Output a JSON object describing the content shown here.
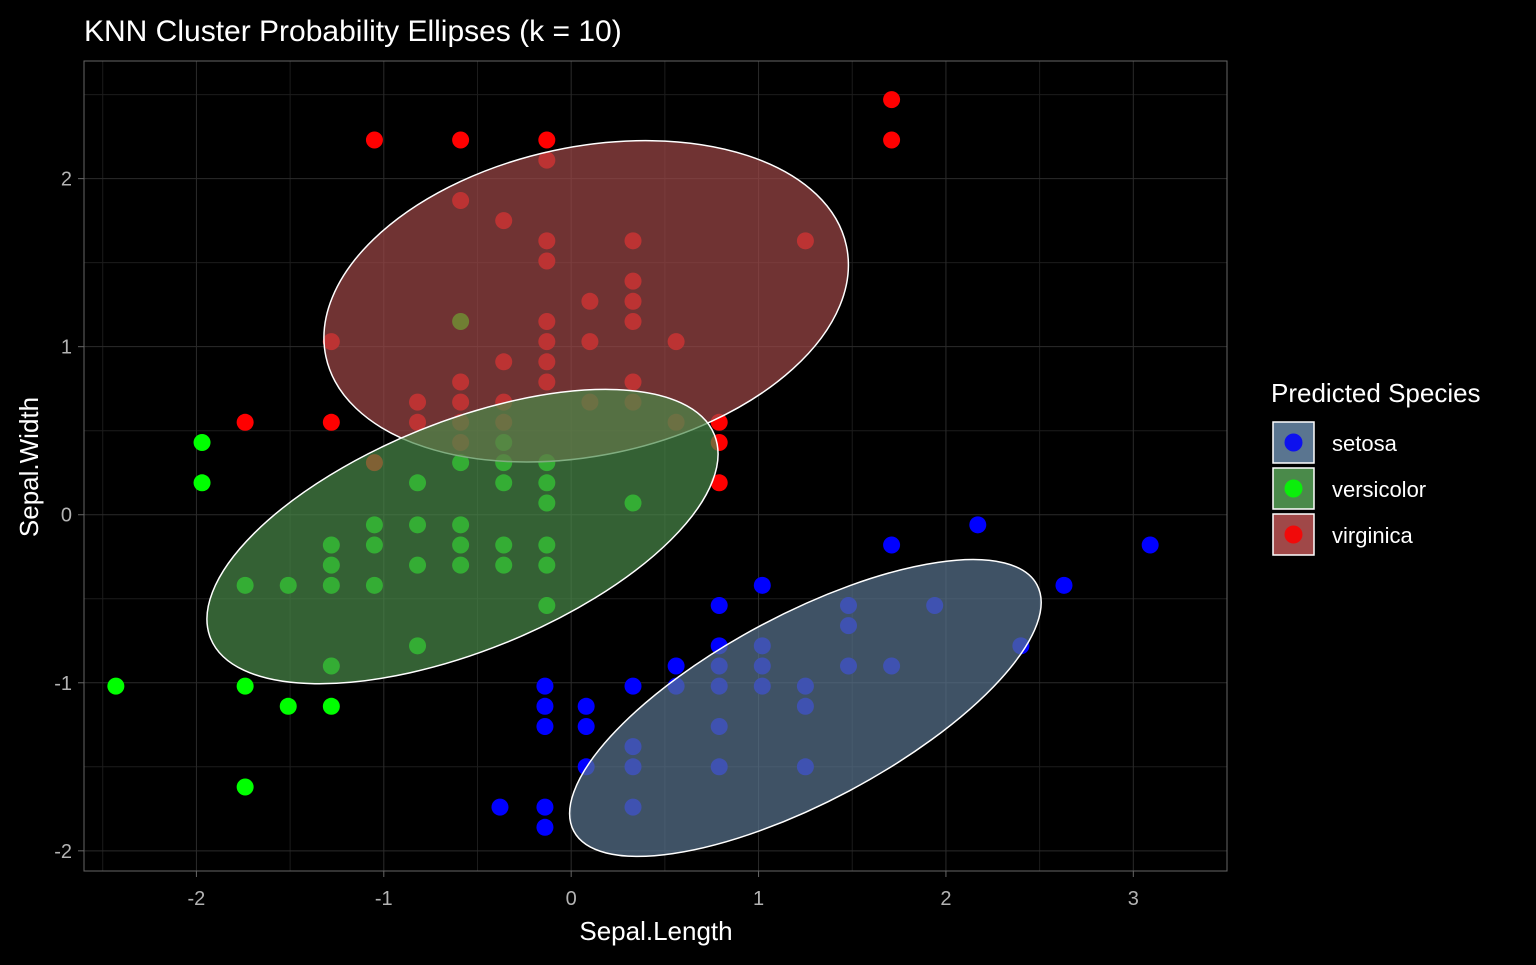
{
  "chart_data": {
    "type": "scatter",
    "title": "KNN Cluster Probability Ellipses (k = 10)",
    "xlabel": "Sepal.Length",
    "ylabel": "Sepal.Width",
    "xlim": [
      -2.6,
      3.5
    ],
    "ylim": [
      -2.12,
      2.7
    ],
    "xticks": [
      -2,
      -1,
      0,
      1,
      2,
      3
    ],
    "yticks": [
      -2,
      -1,
      0,
      1,
      2
    ],
    "grid": true,
    "legend": {
      "title": "Predicted Species",
      "position": "right",
      "entries": [
        "setosa",
        "versicolor",
        "virginica"
      ]
    },
    "colors": {
      "setosa": "#0000ff",
      "versicolor": "#00ff00",
      "virginica": "#ff0000",
      "setosa_fill": "#5a7590",
      "versicolor_fill": "#4a8a4a",
      "virginica_fill": "#a04848",
      "background": "#000000",
      "grid": "#2b2b2b",
      "text": "#ffffff",
      "tick_text": "#b3b3b3"
    },
    "series": [
      {
        "name": "setosa",
        "points": [
          [
            -0.38,
            -1.74
          ],
          [
            -0.14,
            -1.74
          ],
          [
            -0.14,
            -1.86
          ],
          [
            0.33,
            -1.74
          ],
          [
            -0.14,
            -1.02
          ],
          [
            -0.14,
            -1.14
          ],
          [
            -0.14,
            -1.26
          ],
          [
            0.08,
            -1.14
          ],
          [
            0.08,
            -1.26
          ],
          [
            0.08,
            -1.5
          ],
          [
            0.33,
            -1.5
          ],
          [
            0.33,
            -1.38
          ],
          [
            0.33,
            -1.02
          ],
          [
            0.56,
            -0.9
          ],
          [
            0.56,
            -1.02
          ],
          [
            0.79,
            -0.54
          ],
          [
            0.79,
            -0.78
          ],
          [
            0.79,
            -0.9
          ],
          [
            0.79,
            -1.02
          ],
          [
            0.79,
            -1.26
          ],
          [
            0.79,
            -1.5
          ],
          [
            1.02,
            -0.42
          ],
          [
            1.02,
            -0.78
          ],
          [
            1.02,
            -0.9
          ],
          [
            1.02,
            -1.02
          ],
          [
            1.25,
            -1.02
          ],
          [
            1.25,
            -1.14
          ],
          [
            1.25,
            -1.5
          ],
          [
            1.48,
            -0.54
          ],
          [
            1.48,
            -0.66
          ],
          [
            1.48,
            -0.9
          ],
          [
            1.71,
            -0.18
          ],
          [
            1.71,
            -0.9
          ],
          [
            1.94,
            -0.54
          ],
          [
            2.17,
            -0.06
          ],
          [
            2.4,
            -0.78
          ],
          [
            2.63,
            -0.42
          ],
          [
            3.09,
            -0.18
          ]
        ]
      },
      {
        "name": "versicolor",
        "points": [
          [
            -2.43,
            -1.02
          ],
          [
            -1.97,
            0.43
          ],
          [
            -1.97,
            0.19
          ],
          [
            -1.74,
            -0.42
          ],
          [
            -1.74,
            -1.02
          ],
          [
            -1.74,
            -1.62
          ],
          [
            -1.51,
            -0.42
          ],
          [
            -1.51,
            -1.14
          ],
          [
            -1.28,
            -0.18
          ],
          [
            -1.28,
            -0.3
          ],
          [
            -1.28,
            -0.42
          ],
          [
            -1.28,
            -0.9
          ],
          [
            -1.28,
            -1.14
          ],
          [
            -1.05,
            -0.06
          ],
          [
            -1.05,
            -0.18
          ],
          [
            -1.05,
            -0.42
          ],
          [
            -0.82,
            0.19
          ],
          [
            -0.82,
            -0.06
          ],
          [
            -0.82,
            -0.3
          ],
          [
            -0.82,
            -0.78
          ],
          [
            -0.59,
            1.15
          ],
          [
            -0.59,
            0.31
          ],
          [
            -0.59,
            -0.06
          ],
          [
            -0.59,
            -0.18
          ],
          [
            -0.59,
            -0.3
          ],
          [
            -0.36,
            0.43
          ],
          [
            -0.36,
            0.31
          ],
          [
            -0.36,
            0.19
          ],
          [
            -0.36,
            -0.18
          ],
          [
            -0.36,
            -0.3
          ],
          [
            -0.13,
            0.31
          ],
          [
            -0.13,
            0.19
          ],
          [
            -0.13,
            0.07
          ],
          [
            -0.13,
            -0.18
          ],
          [
            -0.13,
            -0.3
          ],
          [
            -0.13,
            -0.54
          ],
          [
            0.33,
            0.07
          ]
        ]
      },
      {
        "name": "virginica",
        "points": [
          [
            -1.05,
            2.23
          ],
          [
            -0.59,
            2.23
          ],
          [
            -0.13,
            2.23
          ],
          [
            -0.13,
            2.11
          ],
          [
            1.71,
            2.47
          ],
          [
            1.71,
            2.23
          ],
          [
            -0.59,
            1.87
          ],
          [
            -0.36,
            1.75
          ],
          [
            -0.13,
            1.63
          ],
          [
            -0.13,
            1.51
          ],
          [
            0.33,
            1.63
          ],
          [
            1.25,
            1.63
          ],
          [
            0.33,
            1.39
          ],
          [
            0.1,
            1.27
          ],
          [
            0.33,
            1.27
          ],
          [
            -0.13,
            1.15
          ],
          [
            0.33,
            1.15
          ],
          [
            -1.28,
            1.03
          ],
          [
            -0.13,
            1.03
          ],
          [
            0.1,
            1.03
          ],
          [
            0.56,
            1.03
          ],
          [
            -0.36,
            0.91
          ],
          [
            -0.13,
            0.91
          ],
          [
            -0.59,
            0.79
          ],
          [
            -0.13,
            0.79
          ],
          [
            0.33,
            0.79
          ],
          [
            -0.82,
            0.67
          ],
          [
            -0.59,
            0.67
          ],
          [
            -0.36,
            0.67
          ],
          [
            0.1,
            0.67
          ],
          [
            0.33,
            0.67
          ],
          [
            -1.74,
            0.55
          ],
          [
            -1.28,
            0.55
          ],
          [
            -0.82,
            0.55
          ],
          [
            -0.59,
            0.55
          ],
          [
            -0.36,
            0.55
          ],
          [
            0.56,
            0.55
          ],
          [
            0.79,
            0.55
          ],
          [
            -0.59,
            0.43
          ],
          [
            0.79,
            0.43
          ],
          [
            -1.05,
            0.31
          ],
          [
            0.79,
            0.19
          ]
        ]
      }
    ],
    "ellipses": [
      {
        "name": "setosa",
        "center": [
          1.25,
          -1.15
        ],
        "rx_units": 1.4,
        "ry_units": 0.9,
        "rotation_deg": -28
      },
      {
        "name": "versicolor",
        "center": [
          -0.58,
          -0.13
        ],
        "rx_units": 1.45,
        "ry_units": 1.1,
        "rotation_deg": -22
      },
      {
        "name": "virginica",
        "center": [
          0.08,
          1.27
        ],
        "rx_units": 1.42,
        "ry_units": 1.48,
        "rotation_deg": -12
      }
    ]
  }
}
